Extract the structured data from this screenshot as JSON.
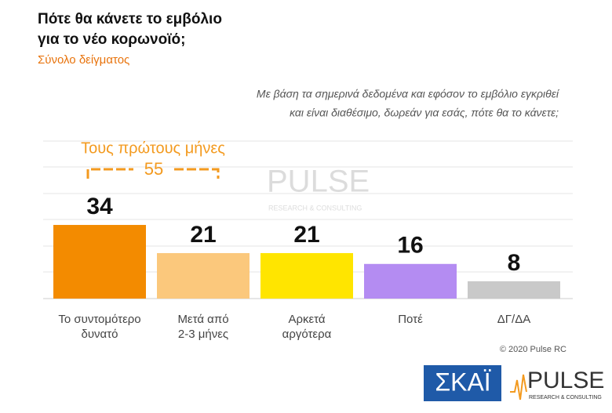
{
  "chart_data": {
    "type": "bar",
    "title": [
      "Πότε θα κάνετε το εμβόλιο",
      "για το νέο κορωνοϊό;"
    ],
    "subtitle": "Σύνολο δείγματος",
    "question": [
      "Με βάση τα σημερινά δεδομένα και εφόσον το εμβόλιο εγκριθεί",
      "και είναι διαθέσιμο, δωρεάν για εσάς, πότε θα το κάνετε;"
    ],
    "categories": [
      "Το συντομότερο δυνατό",
      "Μετά από 2-3 μήνες",
      "Αρκετά αργότερα",
      "Ποτέ",
      "ΔΓ/ΔΑ"
    ],
    "series": [
      {
        "name": "Σύνολο δείγματος",
        "values": [
          34,
          21,
          21,
          16,
          8
        ],
        "colors": [
          "#f38b00",
          "#fbc87c",
          "#ffe500",
          "#b48cf2",
          "#c9c9c9"
        ]
      }
    ],
    "ylim": [
      0,
      72
    ],
    "bracket": {
      "label": "Τους πρώτους μήνες",
      "value": 55
    },
    "copyright": "© 2020 Pulse RC",
    "logos": {
      "skai": "ΣΚΑΪ",
      "pulse": "PULSE",
      "pulse_sub": "RESEARCH & CONSULTING"
    }
  }
}
